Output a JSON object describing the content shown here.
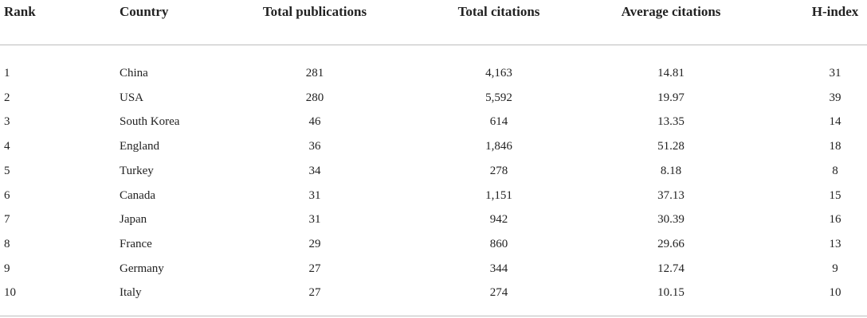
{
  "table": {
    "headers": [
      "Rank",
      "Country",
      "Total publications",
      "Total citations",
      "Average citations",
      "H-index"
    ],
    "rows": [
      [
        "1",
        "China",
        "281",
        "4,163",
        "14.81",
        "31"
      ],
      [
        "2",
        "USA",
        "280",
        "5,592",
        "19.97",
        "39"
      ],
      [
        "3",
        "South Korea",
        "46",
        "614",
        "13.35",
        "14"
      ],
      [
        "4",
        "England",
        "36",
        "1,846",
        "51.28",
        "18"
      ],
      [
        "5",
        "Turkey",
        "34",
        "278",
        "8.18",
        "8"
      ],
      [
        "6",
        "Canada",
        "31",
        "1,151",
        "37.13",
        "15"
      ],
      [
        "7",
        "Japan",
        "31",
        "942",
        "30.39",
        "16"
      ],
      [
        "8",
        "France",
        "29",
        "860",
        "29.66",
        "13"
      ],
      [
        "9",
        "Germany",
        "27",
        "344",
        "12.74",
        "9"
      ],
      [
        "10",
        "Italy",
        "27",
        "274",
        "10.15",
        "10"
      ]
    ]
  }
}
